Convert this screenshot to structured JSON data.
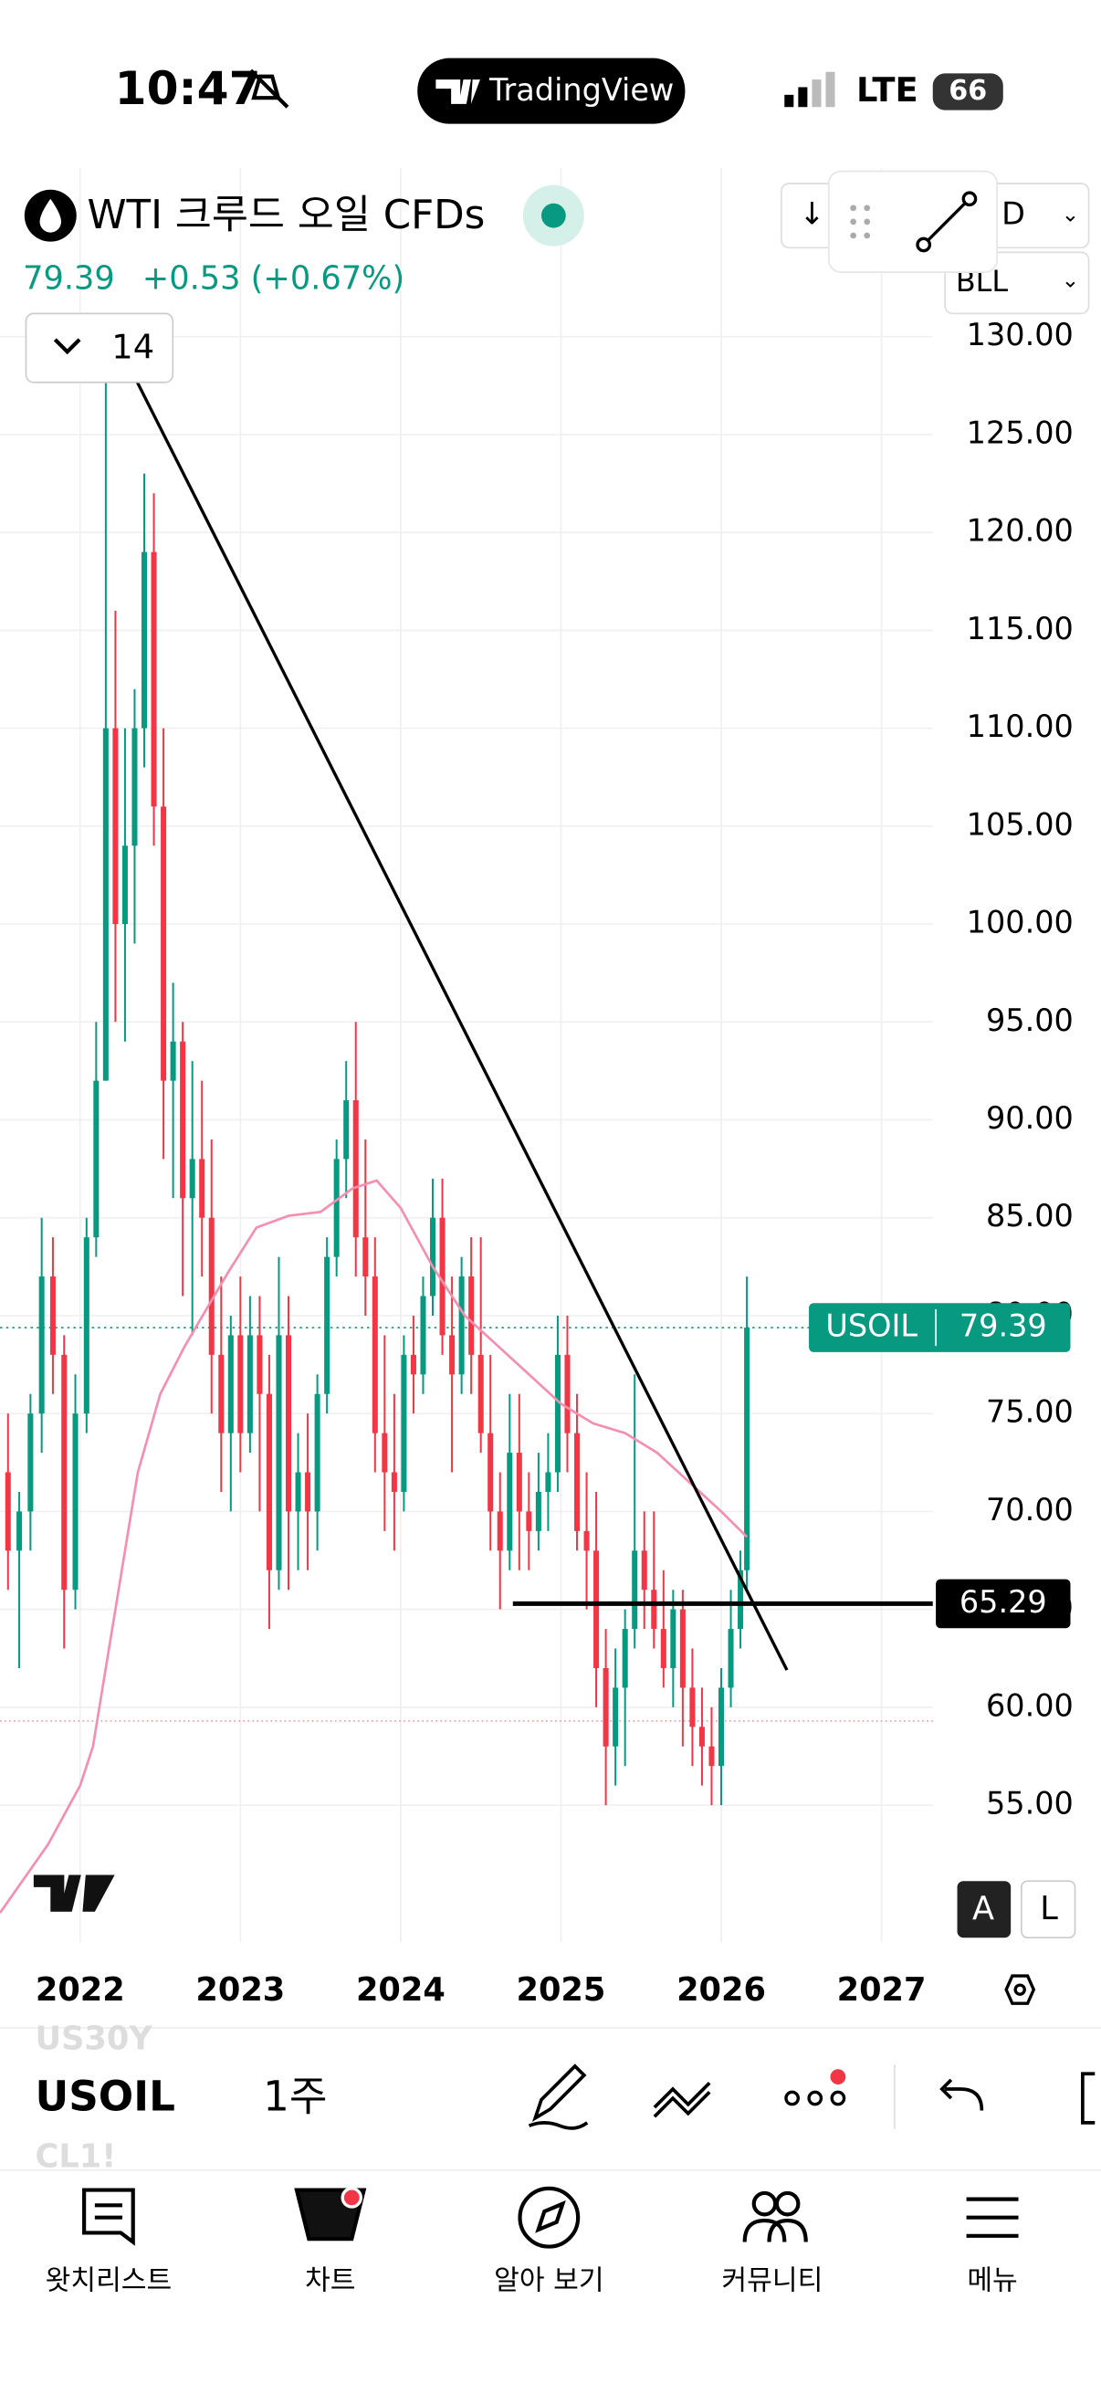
{
  "status_bar": {
    "time": "10:47",
    "app": "TradingView",
    "network": "LTE",
    "battery": "66"
  },
  "header": {
    "symbol_name": "WTI 크루드 오일 CFDs",
    "price": "79.39",
    "change": "+0.53 (+0.67%)",
    "indicator_count": "14",
    "interval_button": "D",
    "indicator_button": "BLL"
  },
  "chart_data": {
    "type": "candlestick",
    "x": [
      2021.55,
      2021.62,
      2021.69,
      2021.76,
      2021.83,
      2021.9,
      2021.97,
      2022.04,
      2022.1,
      2022.16,
      2022.22,
      2022.28,
      2022.34,
      2022.4,
      2022.46,
      2022.52,
      2022.58,
      2022.64,
      2022.7,
      2022.76,
      2022.82,
      2022.88,
      2022.94,
      2023.0,
      2023.06,
      2023.12,
      2023.18,
      2023.24,
      2023.3,
      2023.36,
      2023.42,
      2023.48,
      2023.54,
      2023.6,
      2023.66,
      2023.72,
      2023.78,
      2023.84,
      2023.9,
      2023.96,
      2024.02,
      2024.08,
      2024.14,
      2024.2,
      2024.26,
      2024.32,
      2024.38,
      2024.44,
      2024.5,
      2024.56,
      2024.62,
      2024.68,
      2024.74,
      2024.8,
      2024.86,
      2024.92,
      2024.98,
      2025.04,
      2025.1,
      2025.16,
      2025.22,
      2025.28,
      2025.34,
      2025.4,
      2025.46,
      2025.52,
      2025.58,
      2025.64,
      2025.7,
      2025.76,
      2025.82,
      2025.88,
      2025.94,
      2026.0,
      2026.06,
      2026.12,
      2026.16
    ],
    "open": [
      72,
      68,
      70,
      75,
      82,
      78,
      66,
      75,
      84,
      92,
      110,
      100,
      104,
      110,
      119,
      106,
      92,
      94,
      86,
      88,
      85,
      78,
      74,
      79,
      74,
      79,
      76,
      67,
      79,
      70,
      72,
      70,
      76,
      83,
      88,
      91,
      84,
      82,
      74,
      72,
      71,
      78,
      77,
      81,
      85,
      79,
      77,
      82,
      78,
      74,
      70,
      68,
      73,
      70,
      69,
      71,
      72,
      78,
      74,
      69,
      68,
      62,
      58,
      61,
      64,
      68,
      66,
      64,
      62,
      65,
      61,
      59,
      58,
      57,
      61,
      64,
      67
    ],
    "high": [
      75,
      71,
      76,
      85,
      84,
      79,
      77,
      85,
      95,
      130,
      116,
      110,
      112,
      123,
      122,
      110,
      97,
      95,
      93,
      92,
      89,
      82,
      80,
      82,
      81,
      81,
      78,
      83,
      81,
      74,
      75,
      77,
      84,
      89,
      93,
      95,
      89,
      84,
      79,
      76,
      79,
      80,
      82,
      87,
      87,
      82,
      83,
      84,
      84,
      78,
      72,
      76,
      76,
      72,
      73,
      74,
      80,
      80,
      76,
      72,
      71,
      64,
      63,
      65,
      77,
      70,
      70,
      67,
      66,
      66,
      63,
      61,
      60,
      62,
      66,
      68,
      82
    ],
    "low": [
      66,
      62,
      68,
      73,
      76,
      63,
      65,
      74,
      83,
      92,
      95,
      94,
      99,
      108,
      104,
      88,
      86,
      81,
      79,
      82,
      75,
      71,
      70,
      72,
      73,
      70,
      64,
      66,
      66,
      67,
      67,
      68,
      75,
      82,
      86,
      82,
      80,
      72,
      69,
      68,
      70,
      75,
      76,
      80,
      78,
      72,
      76,
      76,
      73,
      68,
      65,
      67,
      67,
      67,
      68,
      69,
      71,
      72,
      68,
      65,
      60,
      55,
      56,
      57,
      63,
      64,
      63,
      61,
      60,
      58,
      57,
      56,
      55,
      55,
      60,
      63,
      66
    ],
    "close": [
      68,
      70,
      75,
      82,
      78,
      66,
      75,
      84,
      92,
      110,
      100,
      104,
      110,
      119,
      106,
      92,
      94,
      86,
      88,
      85,
      78,
      74,
      79,
      74,
      79,
      76,
      67,
      79,
      70,
      72,
      70,
      76,
      83,
      88,
      91,
      84,
      82,
      74,
      72,
      71,
      78,
      77,
      81,
      85,
      79,
      77,
      82,
      78,
      74,
      70,
      68,
      73,
      70,
      69,
      71,
      72,
      78,
      74,
      69,
      68,
      62,
      58,
      61,
      64,
      68,
      66,
      64,
      62,
      65,
      61,
      59,
      58,
      57,
      61,
      64,
      67,
      79.39
    ],
    "up_color": "#089981",
    "down_color": "#f23645",
    "ma": {
      "color": "#f48fb1",
      "x": [
        2021.5,
        2021.8,
        2022.0,
        2022.08,
        2022.2,
        2022.36,
        2022.5,
        2022.65,
        2022.8,
        2022.93,
        2023.1,
        2023.3,
        2023.5,
        2023.7,
        2023.85,
        2024.0,
        2024.2,
        2024.4,
        2024.6,
        2024.8,
        2025.0,
        2025.2,
        2025.4,
        2025.6,
        2025.8,
        2026.0,
        2026.16
      ],
      "values": [
        49.5,
        53,
        56,
        58,
        64,
        72,
        76,
        78.4,
        80.5,
        82.3,
        84.5,
        85.1,
        85.3,
        86.5,
        86.9,
        85.5,
        82.5,
        80,
        78.5,
        77,
        75.5,
        74.5,
        74,
        73,
        71.5,
        70,
        68.7
      ]
    },
    "trendline": {
      "x": [
        2022.25,
        2026.41
      ],
      "values": [
        129.4,
        61.9
      ]
    },
    "support": {
      "x_start": 2024.7,
      "value": 65.29
    },
    "reference_line": 59.3,
    "last_price": {
      "symbol": "USOIL",
      "value": 79.39
    },
    "xlim": [
      2021.5,
      2027.32
    ],
    "xticks": [
      2022,
      2023,
      2024,
      2025,
      2026,
      2027
    ],
    "ylim": [
      48,
      138.6
    ],
    "yticks": [
      {
        "value": 55,
        "label": "55.00"
      },
      {
        "value": 60,
        "label": "60.00"
      },
      {
        "value": 65,
        "label": "65.00"
      },
      {
        "value": 70,
        "label": "70.00"
      },
      {
        "value": 75,
        "label": "75.00"
      },
      {
        "value": 80,
        "label": "80.00"
      },
      {
        "value": 85,
        "label": "85.00"
      },
      {
        "value": 90,
        "label": "90.00"
      },
      {
        "value": 95,
        "label": "95.00"
      },
      {
        "value": 100,
        "label": "100.00"
      },
      {
        "value": 105,
        "label": "105.00"
      },
      {
        "value": 110,
        "label": "110.00"
      },
      {
        "value": 115,
        "label": "115.00"
      },
      {
        "value": 120,
        "label": "120.00"
      },
      {
        "value": 125,
        "label": "125.00"
      },
      {
        "value": 130,
        "label": "130.00"
      }
    ],
    "grid": true,
    "scale_buttons": [
      "A",
      "L"
    ]
  },
  "toolbar": {
    "prev_symbol": "US30Y",
    "symbol": "USOIL",
    "interval": "1주",
    "next_symbol": "CL1!"
  },
  "nav": [
    "왓치리스트",
    "차트",
    "알아 보기",
    "커뮤니티",
    "메뉴"
  ]
}
